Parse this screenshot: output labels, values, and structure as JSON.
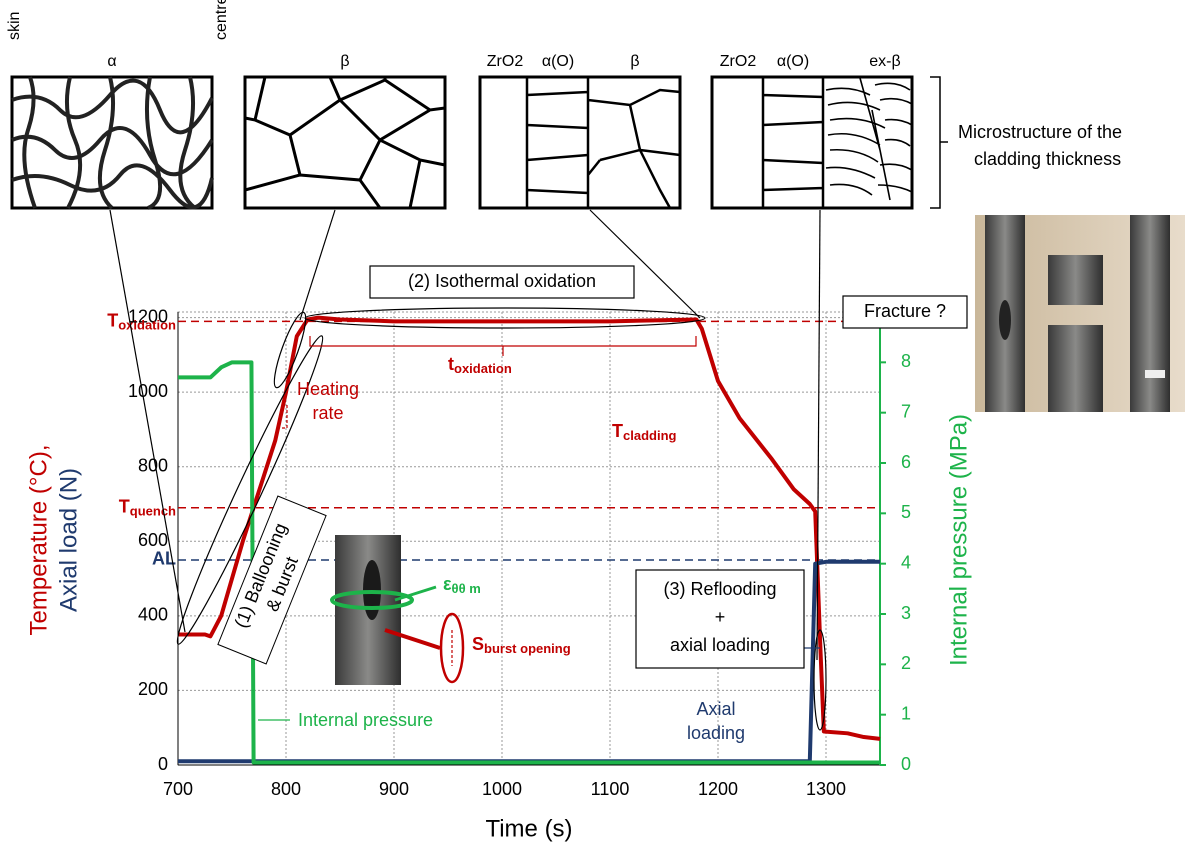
{
  "chart_data": {
    "type": "line",
    "x_label": "Time (s)",
    "y_label_parts": [
      "Temperature (°C),",
      "Axial load (N)"
    ],
    "y2_label": "Internal pressure (MPa)",
    "xlim": [
      700,
      1350
    ],
    "xticks": [
      700,
      800,
      900,
      1000,
      1100,
      1200,
      1300
    ],
    "ylim": [
      0,
      1215
    ],
    "yticks": [
      0,
      200,
      400,
      600,
      800,
      1000,
      1200
    ],
    "y2lim": [
      0,
      9
    ],
    "y2ticks": [
      0,
      1,
      2,
      3,
      4,
      5,
      6,
      7,
      8
    ],
    "grid": true,
    "series": [
      {
        "name": "T",
        "color": "#c00000",
        "x": [
          700,
          725,
          730,
          740,
          760,
          780,
          790,
          800,
          810,
          820,
          830,
          850,
          900,
          1000,
          1100,
          1180,
          1185,
          1200,
          1220,
          1250,
          1270,
          1285,
          1290,
          1295,
          1298,
          1320,
          1335,
          1350
        ],
        "values": [
          350,
          350,
          345,
          400,
          600,
          780,
          870,
          1000,
          1150,
          1195,
          1200,
          1195,
          1190,
          1190,
          1190,
          1195,
          1170,
          1030,
          930,
          820,
          740,
          700,
          680,
          300,
          90,
          85,
          75,
          70
        ]
      },
      {
        "name": "Axial load",
        "color": "#1f3a6e",
        "x": [
          700,
          1285,
          1290,
          1300,
          1350
        ],
        "values": [
          10,
          10,
          540,
          545,
          545
        ]
      },
      {
        "name": "Internal pressure",
        "color": "#1db34a",
        "axis": "y2",
        "x": [
          700,
          730,
          740,
          750,
          765,
          768,
          770,
          780,
          1350
        ],
        "values": [
          7.7,
          7.7,
          7.9,
          8.0,
          8.0,
          8.0,
          0.05,
          0.05,
          0.05
        ]
      }
    ],
    "reference_lines": [
      {
        "label": {
          "main": "T",
          "sub": "oxidation"
        },
        "value": 1190,
        "color": "#c00000"
      },
      {
        "label": {
          "main": "T",
          "sub": "quench"
        },
        "value": 690,
        "color": "#c00000"
      },
      {
        "label": "AL",
        "value": 550,
        "color": "#1f3a6e"
      }
    ],
    "annotations": {
      "isothermal": "(2) Isothermal oxidation",
      "t_oxidation": {
        "main": "t",
        "sub": "oxidation"
      },
      "heating": [
        "Heating",
        "rate"
      ],
      "ballooning": [
        "(1) Ballooning",
        "& burst"
      ],
      "strain": {
        "main": "ε",
        "sub": "θθ m"
      },
      "burst_opening": {
        "main": "S",
        "sub": "burst opening"
      },
      "t_cladding": {
        "main": "T",
        "sub": "cladding"
      },
      "fracture": "Fracture ?",
      "reflooding": [
        "(3) Reflooding",
        "+",
        "axial loading"
      ],
      "axial_loading": [
        "Axial",
        "loading"
      ],
      "internal_pressure": "Internal pressure"
    },
    "microstructure": {
      "panels": [
        {
          "labels": [
            "skin",
            "α",
            "centre"
          ]
        },
        {
          "labels": [
            "β"
          ]
        },
        {
          "labels": [
            "ZrO2",
            "α(O)",
            "β"
          ]
        },
        {
          "labels": [
            "ZrO2",
            "α(O)",
            "ex-β"
          ]
        }
      ],
      "caption": [
        "Microstructure of the",
        "cladding thickness"
      ]
    }
  }
}
